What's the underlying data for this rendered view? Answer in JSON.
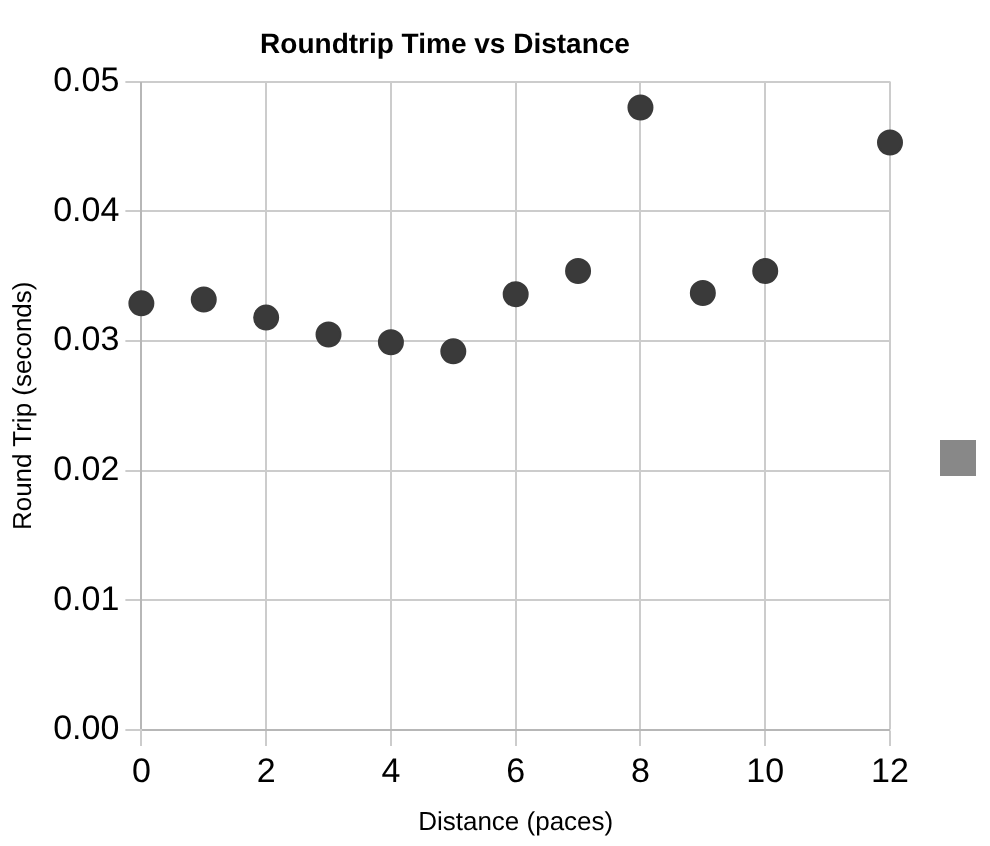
{
  "chart_data": {
    "type": "scatter",
    "title": "Roundtrip Time vs Distance",
    "xlabel": "Distance (paces)",
    "ylabel": "Round Trip (seconds)",
    "x": [
      0,
      1,
      2,
      3,
      4,
      5,
      6,
      7,
      8,
      9,
      10,
      12
    ],
    "series": [
      {
        "color": "#3a3a3a",
        "values": [
          0.0329,
          0.0332,
          0.0318,
          0.0305,
          0.0299,
          0.0292,
          0.0336,
          0.0354,
          0.048,
          0.0337,
          0.0354,
          0.0453
        ]
      }
    ],
    "xlim": [
      0,
      12
    ],
    "xticks": [
      0,
      2,
      4,
      6,
      8,
      10,
      12
    ],
    "ylim": [
      0,
      0.05
    ],
    "yticks": [
      {
        "value": 0,
        "label": "0.00"
      },
      {
        "value": 0.01,
        "label": "0.01"
      },
      {
        "value": 0.02,
        "label": "0.02"
      },
      {
        "value": 0.03,
        "label": "0.03"
      },
      {
        "value": 0.04,
        "label": "0.04"
      },
      {
        "value": 0.05,
        "label": "0.05"
      }
    ],
    "grid": true,
    "marker": "circle"
  }
}
